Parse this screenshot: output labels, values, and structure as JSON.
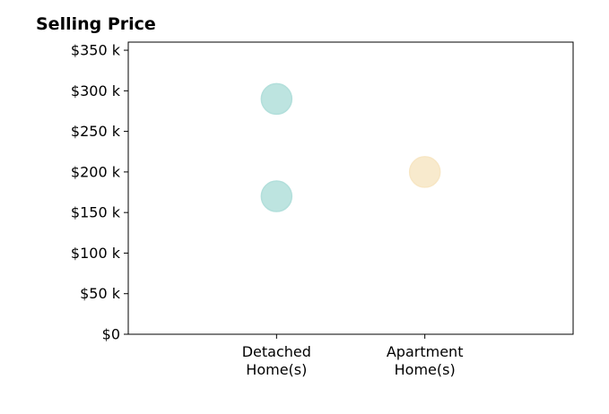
{
  "chart_data": {
    "type": "scatter",
    "title": "Selling Price",
    "xlabel": "",
    "ylabel": "",
    "categories": [
      "Detached\nHome(s)",
      "Apartment\nHome(s)"
    ],
    "x_positions": [
      1,
      2
    ],
    "xlim": [
      0,
      3
    ],
    "ylim": [
      0,
      360000
    ],
    "y_ticks": [
      {
        "value": 0,
        "label": "$0"
      },
      {
        "value": 50000,
        "label": "$50 k"
      },
      {
        "value": 100000,
        "label": "$100 k"
      },
      {
        "value": 150000,
        "label": "$150 k"
      },
      {
        "value": 200000,
        "label": "$200 k"
      },
      {
        "value": 250000,
        "label": "$250 k"
      },
      {
        "value": 300000,
        "label": "$300 k"
      },
      {
        "value": 350000,
        "label": "$350 k"
      }
    ],
    "points": [
      {
        "category": "Detached\nHome(s)",
        "x": 1,
        "y": 290000,
        "color": "#b2dfdb"
      },
      {
        "category": "Detached\nHome(s)",
        "x": 1,
        "y": 170000,
        "color": "#b2dfdb"
      },
      {
        "category": "Apartment\nHome(s)",
        "x": 2,
        "y": 200000,
        "color": "#f7e6c4"
      }
    ],
    "grid": false,
    "legend": "none"
  }
}
